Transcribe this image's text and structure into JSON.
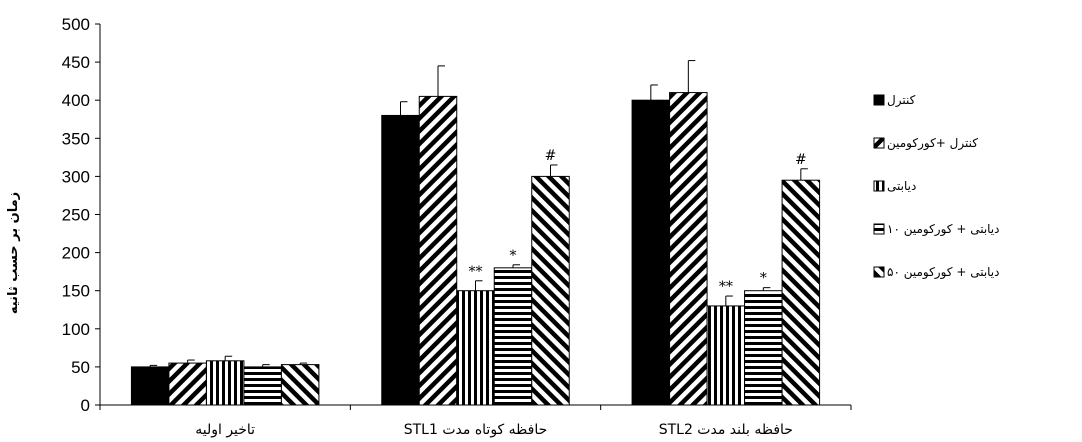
{
  "chart_data": {
    "type": "bar",
    "ylabel": "زمان بر حسب ثانیه",
    "ylim": [
      0,
      500
    ],
    "yticks": [
      0,
      50,
      100,
      150,
      200,
      250,
      300,
      350,
      400,
      450,
      500
    ],
    "grid": false,
    "legend_position": "right",
    "categories": [
      "تاخیر اولیه",
      "حافظه کوتاه مدت STL1",
      "حافظه بلند مدت STL2"
    ],
    "series": [
      {
        "name": "کنترل",
        "pattern": "solid",
        "values": [
          50,
          380,
          400
        ],
        "errors": [
          2,
          18,
          20
        ],
        "annotations": [
          "",
          "",
          ""
        ]
      },
      {
        "name": "کنترل +کورکومین",
        "pattern": "diagonal-up",
        "values": [
          55,
          405,
          410
        ],
        "errors": [
          4,
          40,
          42
        ],
        "annotations": [
          "",
          "",
          ""
        ]
      },
      {
        "name": "دیابتی",
        "pattern": "vertical",
        "values": [
          58,
          150,
          130
        ],
        "errors": [
          6,
          13,
          13
        ],
        "annotations": [
          "",
          "**",
          "**"
        ]
      },
      {
        "name": "دیابتی + کورکومین ۱۰",
        "pattern": "horizontal",
        "values": [
          50,
          180,
          150
        ],
        "errors": [
          3,
          4,
          4
        ],
        "annotations": [
          "",
          "*",
          "*"
        ]
      },
      {
        "name": "دیابتی + کورکومین ۵۰",
        "pattern": "diagonal-down",
        "values": [
          53,
          300,
          295
        ],
        "errors": [
          2,
          15,
          15
        ],
        "annotations": [
          "",
          "#",
          "#"
        ]
      }
    ]
  }
}
